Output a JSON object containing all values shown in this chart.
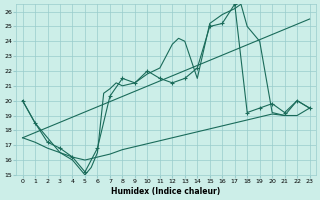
{
  "xlabel": "Humidex (Indice chaleur)",
  "bg_color": "#cceee8",
  "grid_color": "#99cccc",
  "line_color": "#1a6b5a",
  "xlim": [
    -0.5,
    23.5
  ],
  "ylim": [
    15,
    26.5
  ],
  "xticks": [
    0,
    1,
    2,
    3,
    4,
    5,
    6,
    7,
    8,
    9,
    10,
    11,
    12,
    13,
    14,
    15,
    16,
    17,
    18,
    19,
    20,
    21,
    22,
    23
  ],
  "yticks": [
    15,
    16,
    17,
    18,
    19,
    20,
    21,
    22,
    23,
    24,
    25,
    26
  ],
  "curve1_x": [
    0,
    1,
    2,
    3,
    4,
    5,
    5.5,
    6,
    6.5,
    7,
    7.5,
    8,
    9,
    10,
    11,
    12,
    12.5,
    13,
    14,
    15,
    15.5,
    16,
    17,
    17.5,
    18,
    19,
    20,
    21,
    22,
    23
  ],
  "curve1_y": [
    20,
    18.5,
    17.5,
    16.5,
    16,
    15,
    15.5,
    16.5,
    20.5,
    20.8,
    21.2,
    21.0,
    21.2,
    21.8,
    22.2,
    23.8,
    24.2,
    24.0,
    21.5,
    25.2,
    25.5,
    25.8,
    26.2,
    26.5,
    25.0,
    24.0,
    19.2,
    19.0,
    20.0,
    19.5
  ],
  "curve2_x": [
    0,
    1,
    2,
    3,
    4,
    5,
    6,
    7,
    8,
    9,
    10,
    11,
    12,
    13,
    14,
    15,
    16,
    17,
    18,
    19,
    20,
    21,
    22,
    23
  ],
  "curve2_y": [
    20.0,
    18.5,
    17.2,
    16.8,
    16.2,
    15.2,
    16.8,
    20.3,
    21.5,
    21.2,
    22.0,
    21.5,
    21.2,
    21.5,
    22.2,
    25.0,
    25.2,
    26.5,
    19.2,
    19.5,
    19.8,
    19.2,
    20.0,
    19.5
  ],
  "curve3_x": [
    0,
    1,
    2,
    3,
    4,
    5,
    6,
    7,
    8,
    9,
    10,
    11,
    12,
    13,
    14,
    15,
    16,
    17,
    18,
    19,
    20,
    21,
    22,
    23
  ],
  "curve3_y": [
    17.5,
    17.2,
    16.8,
    16.5,
    16.2,
    16.0,
    16.2,
    16.4,
    16.7,
    16.9,
    17.1,
    17.3,
    17.5,
    17.7,
    17.9,
    18.1,
    18.3,
    18.5,
    18.7,
    18.9,
    19.1,
    19.0,
    19.0,
    19.5
  ],
  "line4_x": [
    0,
    23
  ],
  "line4_y": [
    17.5,
    25.5
  ]
}
